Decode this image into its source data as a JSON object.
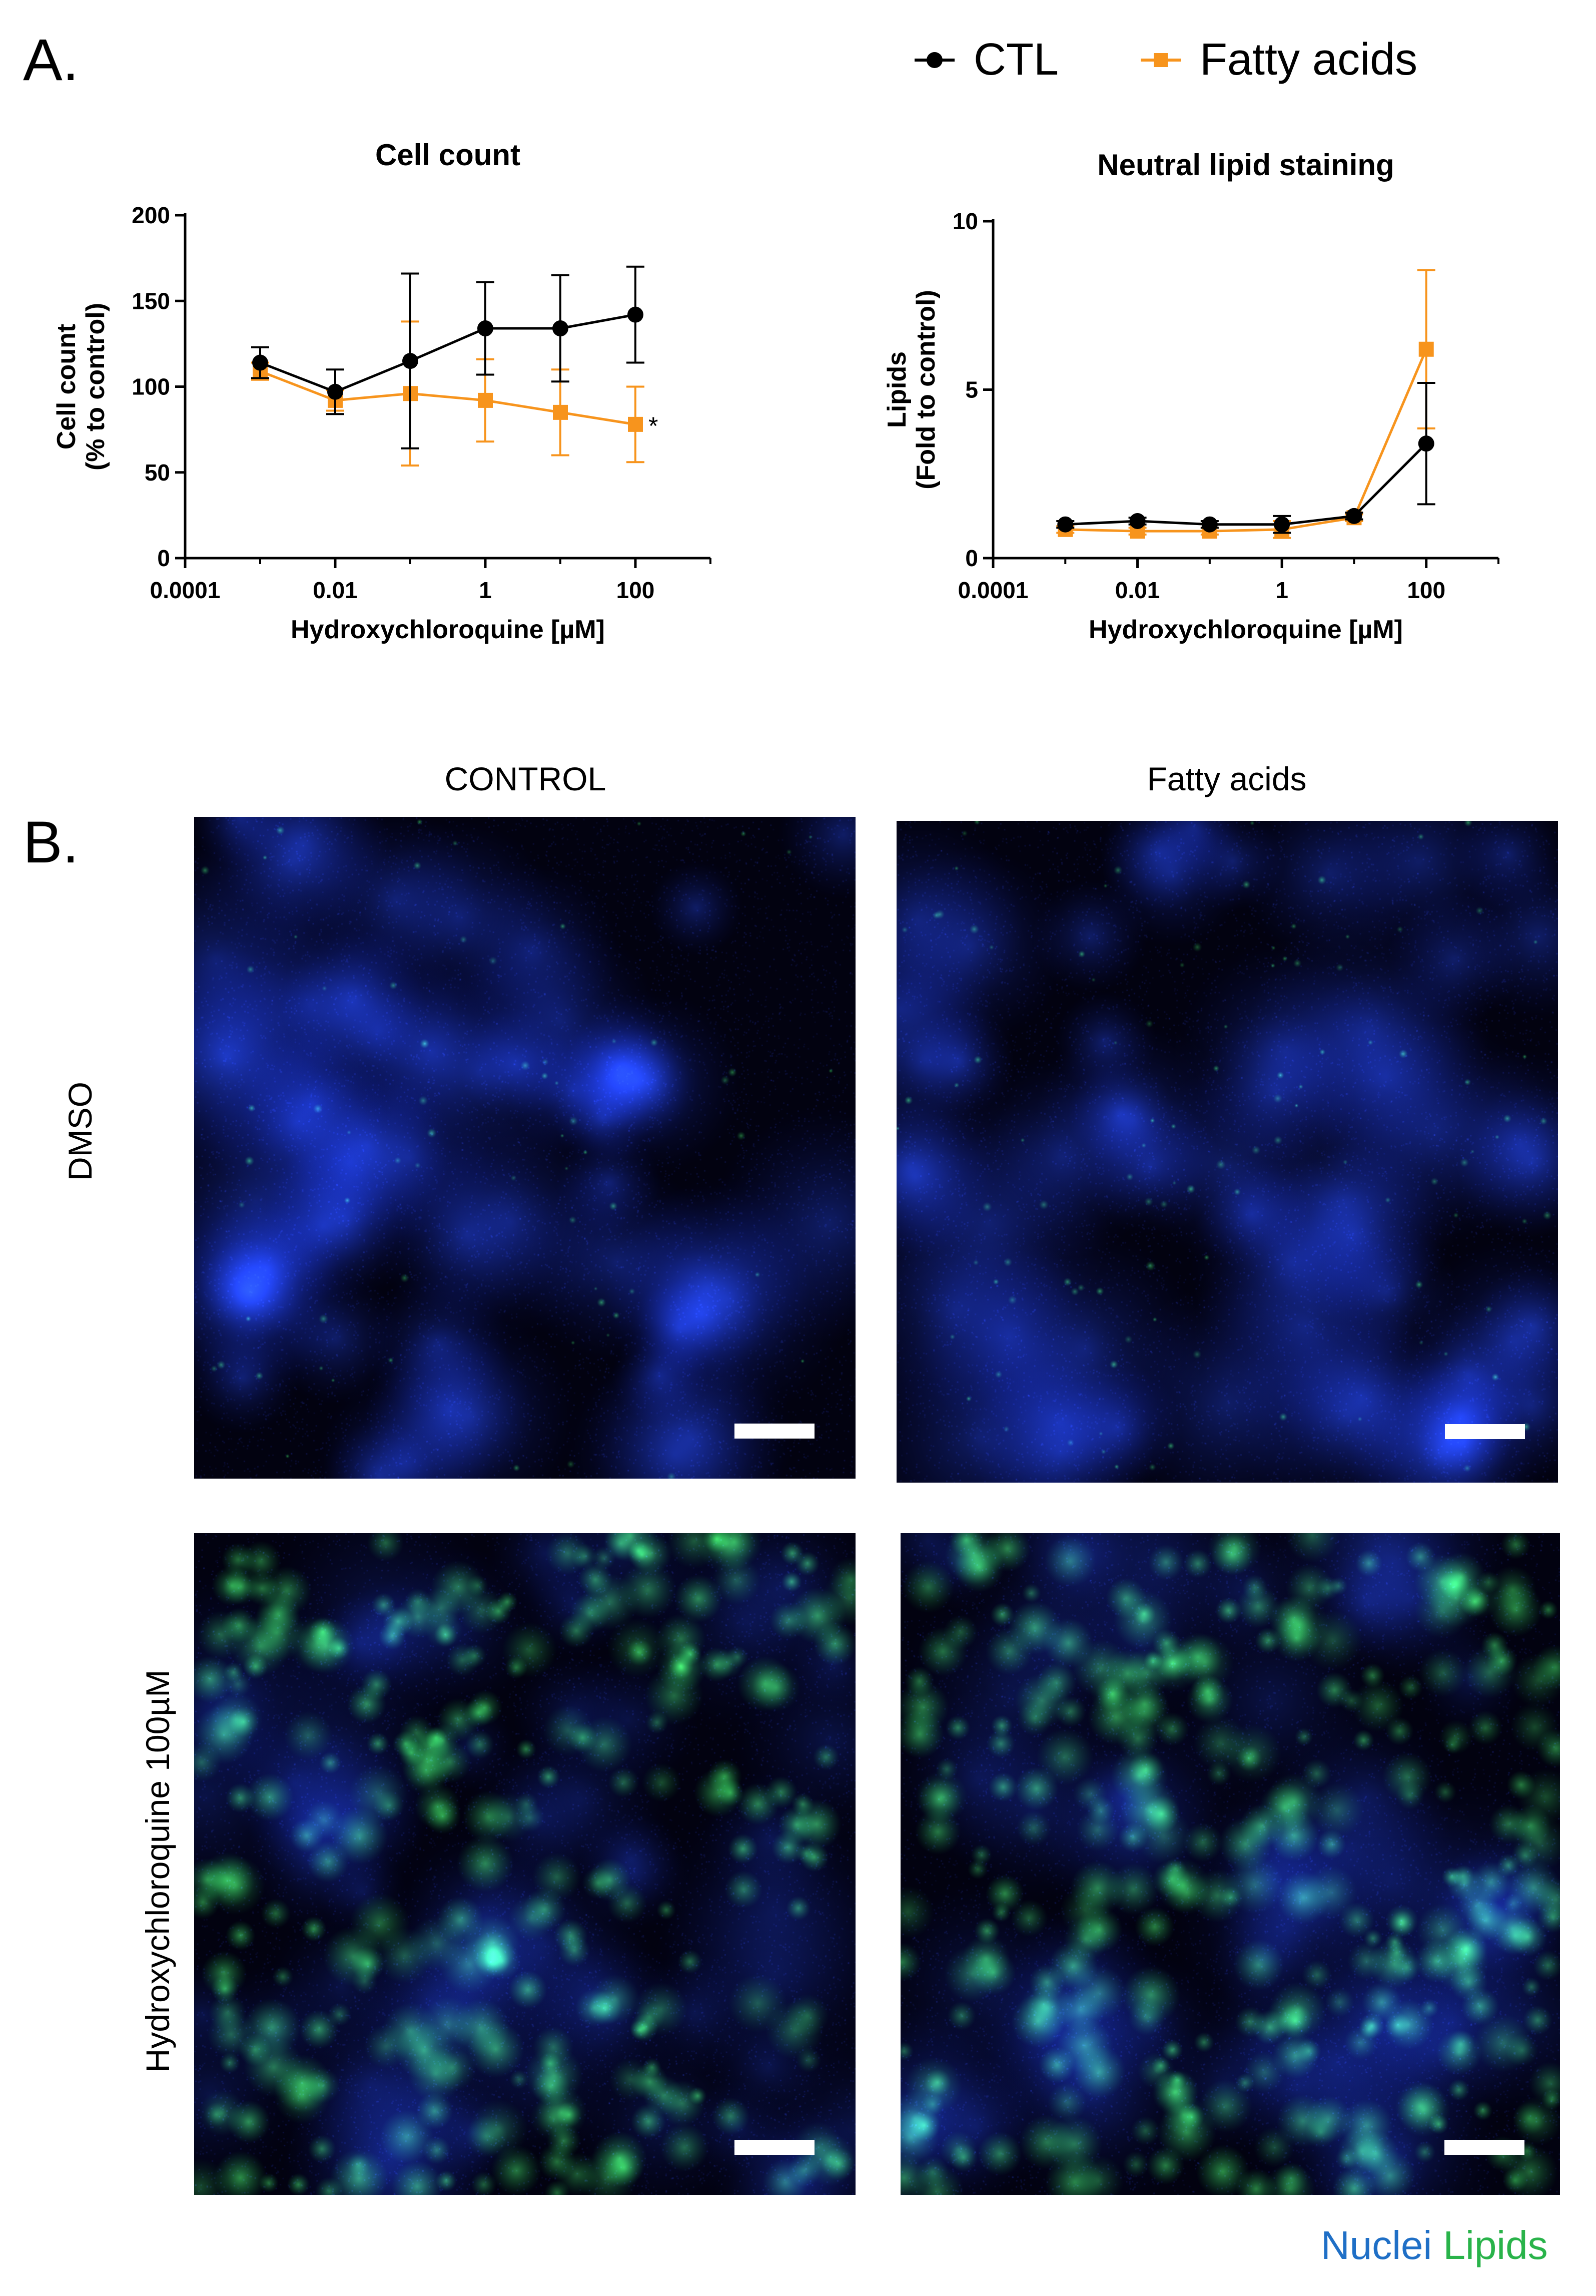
{
  "panel_labels": {
    "a": "A.",
    "b": "B."
  },
  "legend": [
    {
      "label": "CTL",
      "color": "#000000",
      "marker": "circle"
    },
    {
      "label": "Fatty acids",
      "color": "#f7941d",
      "marker": "square"
    }
  ],
  "chart_data": [
    {
      "type": "line",
      "title": "Cell count",
      "xlabel": "Hydroxychloroquine [µM]",
      "ylabel_lines": [
        "Cell count",
        "(% to control)"
      ],
      "x_scale": "log",
      "xlim": [
        0.0001,
        1000
      ],
      "ylim": [
        0,
        200
      ],
      "x_ticks": [
        0.0001,
        0.01,
        1,
        100
      ],
      "x_tick_labels": [
        "0.0001",
        "0.01",
        "1",
        "100"
      ],
      "y_ticks": [
        0,
        50,
        100,
        150,
        200
      ],
      "y_tick_labels": [
        "0",
        "50",
        "100",
        "150",
        "200"
      ],
      "x": [
        0.001,
        0.01,
        0.1,
        1,
        10,
        100
      ],
      "series": [
        {
          "name": "CTL",
          "color": "#000000",
          "marker": "circle",
          "values": [
            114,
            97,
            115,
            134,
            134,
            142
          ],
          "errors": [
            9,
            13,
            51,
            27,
            31,
            28
          ]
        },
        {
          "name": "Fatty acids",
          "color": "#f7941d",
          "marker": "square",
          "values": [
            109,
            92,
            96,
            92,
            85,
            78
          ],
          "errors": [
            5,
            6,
            42,
            24,
            25,
            22
          ]
        }
      ],
      "annotations": [
        {
          "text": "*",
          "x": 100,
          "y": 78
        }
      ]
    },
    {
      "type": "line",
      "title": "Neutral lipid staining",
      "xlabel": "Hydroxychloroquine [µM]",
      "ylabel_lines": [
        "Lipids",
        "(Fold to control)"
      ],
      "x_scale": "log",
      "xlim": [
        0.0001,
        1000
      ],
      "ylim": [
        0,
        10
      ],
      "x_ticks": [
        0.0001,
        0.01,
        1,
        100
      ],
      "x_tick_labels": [
        "0.0001",
        "0.01",
        "1",
        "100"
      ],
      "y_ticks": [
        0,
        5,
        10
      ],
      "y_tick_labels": [
        "0",
        "5",
        "10"
      ],
      "x": [
        0.001,
        0.01,
        0.1,
        1,
        10,
        100
      ],
      "series": [
        {
          "name": "CTL",
          "color": "#000000",
          "marker": "circle",
          "values": [
            1.0,
            1.1,
            1.0,
            1.0,
            1.25,
            3.4
          ],
          "errors": [
            0.1,
            0.1,
            0.1,
            0.25,
            0.1,
            1.8
          ]
        },
        {
          "name": "Fatty acids",
          "color": "#f7941d",
          "marker": "square",
          "values": [
            0.85,
            0.8,
            0.8,
            0.85,
            1.2,
            6.2
          ],
          "errors": [
            0.1,
            0.1,
            0.1,
            0.25,
            0.1,
            2.35
          ]
        }
      ]
    }
  ],
  "micrographs": {
    "column_labels": [
      "CONTROL",
      "Fatty acids"
    ],
    "row_labels": [
      "DMSO",
      "Hydroxychloroquine 100µM"
    ],
    "colors": {
      "nuclei": "#1f4fd1",
      "lipids": "#22c55e",
      "background": "#020210"
    }
  },
  "footer": {
    "nuclei": "Nuclei",
    "lipids": "Lipids",
    "nuclei_color": "#1f6fc6",
    "lipids_color": "#29b34a"
  }
}
